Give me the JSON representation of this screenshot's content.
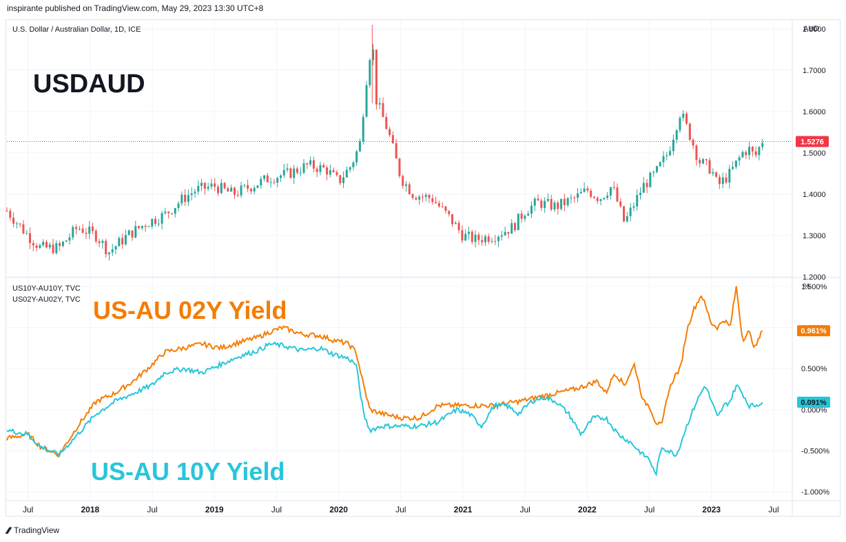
{
  "header": {
    "publisher_line": "inspirante published on TradingView.com, May 29, 2023 13:30 UTC+8"
  },
  "top_pane": {
    "symbol_line": "U.S. Dollar / Australian Dollar, 1D, ICE",
    "big_title": "USDAUD",
    "unit": "AUD",
    "last_price_label": "1.5276"
  },
  "bottom_pane": {
    "legend_line_1": "US10Y-AU10Y, TVC",
    "legend_line_2": "US02Y-AU02Y, TVC",
    "title_02y": "US-AU 02Y Yield",
    "title_10y": "US-AU 10Y Yield",
    "unit": "%",
    "last_02y_label": "0.961%",
    "last_10y_label": "0.091%"
  },
  "footer": {
    "brand": "TradingView"
  },
  "colors": {
    "candle_up": "#26a69a",
    "candle_down": "#ef5350",
    "series_02y": "#f57c00",
    "series_10y": "#26c6da",
    "last_price_bg": "#f23645",
    "grid": "#f0f3fa"
  },
  "chart_data": [
    {
      "type": "candlestick",
      "title": "U.S. Dollar / Australian Dollar, 1D, ICE",
      "ylabel": "AUD",
      "ylim": [
        1.2,
        1.82
      ],
      "y_ticks": [
        "1.8000",
        "1.7000",
        "1.6000",
        "1.5000",
        "1.4000",
        "1.3000",
        "1.2000"
      ],
      "x_ticks": [
        "Jul",
        "2018",
        "Jul",
        "2019",
        "Jul",
        "2020",
        "Jul",
        "2021",
        "Jul",
        "2022",
        "Jul",
        "2023",
        "Jul"
      ],
      "last_value": 1.5276,
      "series": [
        {
          "name": "USDAUD",
          "x": [
            2017.33,
            2017.5,
            2017.6,
            2017.75,
            2017.9,
            2018.05,
            2018.15,
            2018.3,
            2018.45,
            2018.6,
            2018.75,
            2018.85,
            2019.0,
            2019.15,
            2019.3,
            2019.45,
            2019.6,
            2019.75,
            2019.9,
            2020.0,
            2020.1,
            2020.17,
            2020.22,
            2020.27,
            2020.3,
            2020.4,
            2020.5,
            2020.6,
            2020.75,
            2020.9,
            2021.0,
            2021.1,
            2021.25,
            2021.4,
            2021.5,
            2021.6,
            2021.75,
            2021.9,
            2022.0,
            2022.1,
            2022.2,
            2022.3,
            2022.45,
            2022.55,
            2022.65,
            2022.75,
            2022.83,
            2022.9,
            2023.0,
            2023.05,
            2023.15,
            2023.25,
            2023.3,
            2023.35,
            2023.41
          ],
          "values": [
            1.36,
            1.3,
            1.27,
            1.27,
            1.32,
            1.3,
            1.26,
            1.3,
            1.33,
            1.35,
            1.39,
            1.41,
            1.42,
            1.4,
            1.42,
            1.44,
            1.45,
            1.47,
            1.46,
            1.43,
            1.47,
            1.52,
            1.67,
            1.78,
            1.63,
            1.55,
            1.44,
            1.4,
            1.39,
            1.34,
            1.3,
            1.29,
            1.3,
            1.32,
            1.36,
            1.38,
            1.37,
            1.39,
            1.41,
            1.39,
            1.42,
            1.33,
            1.42,
            1.45,
            1.5,
            1.6,
            1.54,
            1.48,
            1.46,
            1.42,
            1.45,
            1.5,
            1.51,
            1.49,
            1.53
          ]
        }
      ]
    },
    {
      "type": "line",
      "ylabel": "%",
      "ylim": [
        -1.1,
        1.6
      ],
      "y_ticks": [
        "1.500%",
        "1.000%",
        "0.500%",
        "0.000%",
        "-0.500%",
        "-1.000%"
      ],
      "x_ticks": [
        "Jul",
        "2018",
        "Jul",
        "2019",
        "Jul",
        "2020",
        "Jul",
        "2021",
        "Jul",
        "2022",
        "Jul",
        "2023",
        "Jul"
      ],
      "series": [
        {
          "name": "US02Y-AU02Y, TVC",
          "x": [
            2017.33,
            2017.5,
            2017.6,
            2017.75,
            2017.9,
            2018.05,
            2018.2,
            2018.35,
            2018.5,
            2018.6,
            2018.75,
            2018.9,
            2019.05,
            2019.2,
            2019.35,
            2019.45,
            2019.55,
            2019.7,
            2019.85,
            2019.95,
            2020.08,
            2020.14,
            2020.2,
            2020.25,
            2020.35,
            2020.5,
            2020.65,
            2020.8,
            2020.95,
            2021.1,
            2021.25,
            2021.45,
            2021.6,
            2021.75,
            2021.9,
            2022.0,
            2022.08,
            2022.15,
            2022.22,
            2022.3,
            2022.38,
            2022.45,
            2022.5,
            2022.55,
            2022.6,
            2022.65,
            2022.7,
            2022.75,
            2022.8,
            2022.85,
            2022.92,
            2023.0,
            2023.05,
            2023.1,
            2023.15,
            2023.2,
            2023.25,
            2023.3,
            2023.35,
            2023.41
          ],
          "values": [
            -0.35,
            -0.3,
            -0.45,
            -0.55,
            -0.2,
            0.1,
            0.2,
            0.35,
            0.55,
            0.7,
            0.75,
            0.8,
            0.75,
            0.82,
            0.88,
            0.95,
            1.0,
            0.92,
            0.9,
            0.85,
            0.8,
            0.7,
            0.3,
            0.0,
            -0.05,
            -0.1,
            -0.1,
            0.05,
            0.05,
            0.05,
            0.05,
            0.1,
            0.15,
            0.2,
            0.25,
            0.3,
            0.35,
            0.2,
            0.45,
            0.3,
            0.55,
            0.1,
            0.05,
            -0.15,
            -0.2,
            0.2,
            0.4,
            0.5,
            0.95,
            1.2,
            1.4,
            1.05,
            1.0,
            1.1,
            1.0,
            1.5,
            0.85,
            0.95,
            0.75,
            0.961
          ]
        },
        {
          "name": "US10Y-AU10Y, TVC",
          "x": [
            2017.33,
            2017.5,
            2017.6,
            2017.75,
            2017.9,
            2018.05,
            2018.2,
            2018.35,
            2018.5,
            2018.6,
            2018.75,
            2018.9,
            2019.05,
            2019.2,
            2019.35,
            2019.45,
            2019.55,
            2019.7,
            2019.85,
            2019.95,
            2020.08,
            2020.14,
            2020.2,
            2020.25,
            2020.35,
            2020.5,
            2020.65,
            2020.8,
            2020.95,
            2021.05,
            2021.15,
            2021.25,
            2021.35,
            2021.45,
            2021.55,
            2021.65,
            2021.75,
            2021.85,
            2021.95,
            2022.05,
            2022.15,
            2022.25,
            2022.35,
            2022.45,
            2022.5,
            2022.55,
            2022.6,
            2022.65,
            2022.72,
            2022.8,
            2022.88,
            2022.95,
            2023.0,
            2023.05,
            2023.1,
            2023.15,
            2023.2,
            2023.25,
            2023.3,
            2023.35,
            2023.41
          ],
          "values": [
            -0.25,
            -0.3,
            -0.45,
            -0.55,
            -0.3,
            -0.05,
            0.1,
            0.2,
            0.3,
            0.45,
            0.5,
            0.45,
            0.55,
            0.65,
            0.72,
            0.8,
            0.78,
            0.72,
            0.75,
            0.68,
            0.62,
            0.55,
            -0.05,
            -0.25,
            -0.2,
            -0.2,
            -0.2,
            -0.15,
            0.0,
            -0.05,
            -0.2,
            0.05,
            0.05,
            -0.05,
            0.1,
            0.15,
            0.1,
            -0.05,
            -0.3,
            -0.1,
            -0.1,
            -0.3,
            -0.4,
            -0.55,
            -0.6,
            -0.8,
            -0.45,
            -0.5,
            -0.55,
            -0.2,
            0.1,
            0.3,
            0.1,
            -0.1,
            0.05,
            0.1,
            0.3,
            0.2,
            0.05,
            0.05,
            0.091
          ]
        }
      ]
    }
  ]
}
